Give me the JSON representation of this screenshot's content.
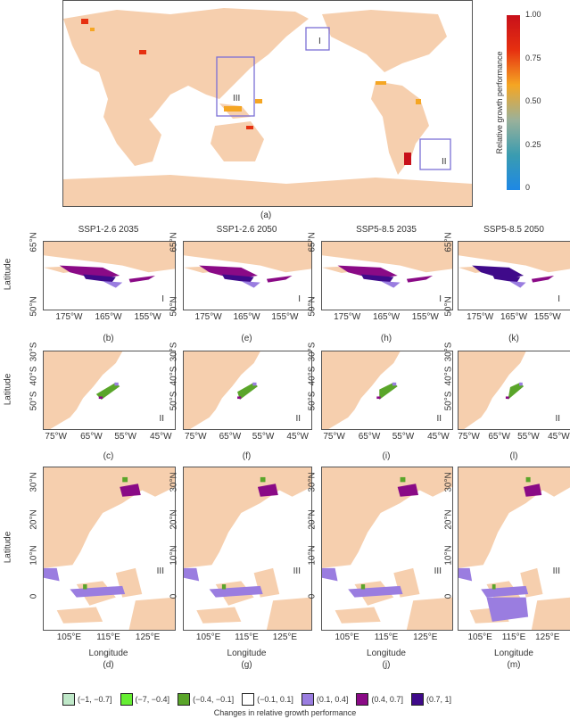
{
  "world_map": {
    "label": "(a)",
    "regions": [
      "I",
      "II",
      "III"
    ],
    "land_color": "#f6cfae",
    "box_color": "#7b6fd6"
  },
  "colorbar": {
    "title": "Relative growth performance",
    "ticks": [
      "1.00",
      "0.75",
      "0.50",
      "0.25",
      "0"
    ],
    "colors": [
      "#c8101a",
      "#e63010",
      "#f5a623",
      "#9ab19a",
      "#3a9cb0",
      "#1e88e5"
    ]
  },
  "y_axis_label": "Latitude",
  "x_axis_label": "Longitude",
  "columns": [
    {
      "title": "SSP1-2.6  2035",
      "letters": [
        "(b)",
        "(c)",
        "(d)"
      ]
    },
    {
      "title": "SSP1-2.6  2050",
      "letters": [
        "(e)",
        "(f)",
        "(g)"
      ]
    },
    {
      "title": "SSP5-8.5  2035",
      "letters": [
        "(h)",
        "(i)",
        "(j)"
      ]
    },
    {
      "title": "SSP5-8.5  2050",
      "letters": [
        "(k)",
        "(l)",
        "(m)"
      ]
    }
  ],
  "rows": [
    {
      "region": "I",
      "y_ticks": [
        "65°N",
        "50°N"
      ],
      "x_ticks": [
        "175°W",
        "165°W",
        "155°W"
      ]
    },
    {
      "region": "II",
      "y_ticks": [
        "30°S",
        "40°S",
        "50°S"
      ],
      "x_ticks": [
        "75°W",
        "65°W",
        "55°W",
        "45°W"
      ]
    },
    {
      "region": "III",
      "y_ticks": [
        "30°N",
        "20°N",
        "10°N",
        "0"
      ],
      "x_ticks": [
        "105°E",
        "115°E",
        "125°E"
      ]
    }
  ],
  "legend": {
    "title": "Changes in relative growth performance",
    "items": [
      {
        "label": "(−1, −0.7]",
        "color": "#bfe8c8"
      },
      {
        "label": "(−7, −0.4]",
        "color": "#66ee33"
      },
      {
        "label": "(−0.4, −0.1]",
        "color": "#5aa52a"
      },
      {
        "label": "(−0.1, 0.1]",
        "color": "#ffffff"
      },
      {
        "label": "(0.1, 0.4]",
        "color": "#9a7de0"
      },
      {
        "label": "(0.4, 0.7]",
        "color": "#8a0a86"
      },
      {
        "label": "(0.7, 1]",
        "color": "#3f0a8a"
      }
    ]
  }
}
